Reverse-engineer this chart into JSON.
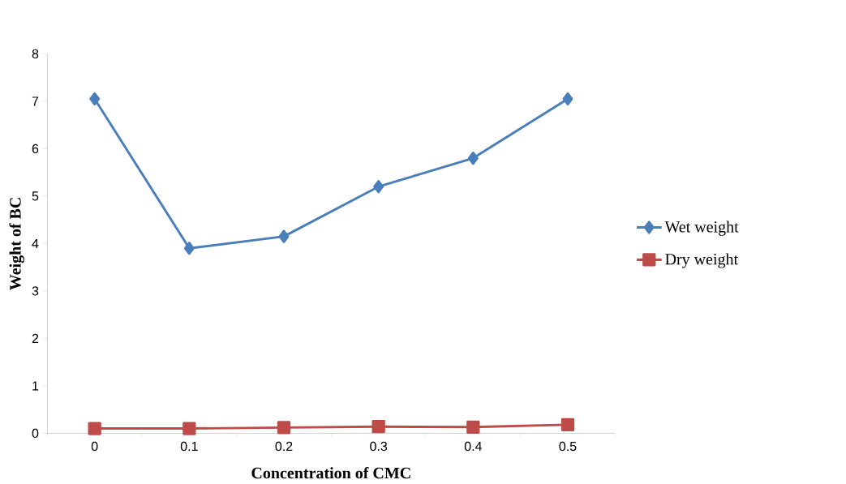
{
  "chart_data": {
    "type": "line",
    "xlabel": "Concentration of CMC",
    "ylabel": "Weight of BC",
    "categories": [
      "0",
      "0.1",
      "0.2",
      "0.3",
      "0.4",
      "0.5"
    ],
    "series": [
      {
        "name": "Wet weight",
        "color": "#4a7ebb",
        "marker": "diamond",
        "values": [
          7.05,
          3.9,
          4.15,
          5.2,
          5.8,
          7.05
        ]
      },
      {
        "name": "Dry weight",
        "color": "#be4b48",
        "marker": "square",
        "values": [
          0.1,
          0.1,
          0.12,
          0.14,
          0.13,
          0.18
        ]
      }
    ],
    "ylim": [
      0,
      8
    ],
    "yticks": [
      0,
      1,
      2,
      3,
      4,
      5,
      6,
      7,
      8
    ],
    "grid": false,
    "legend": "right",
    "line_style": "solid"
  }
}
